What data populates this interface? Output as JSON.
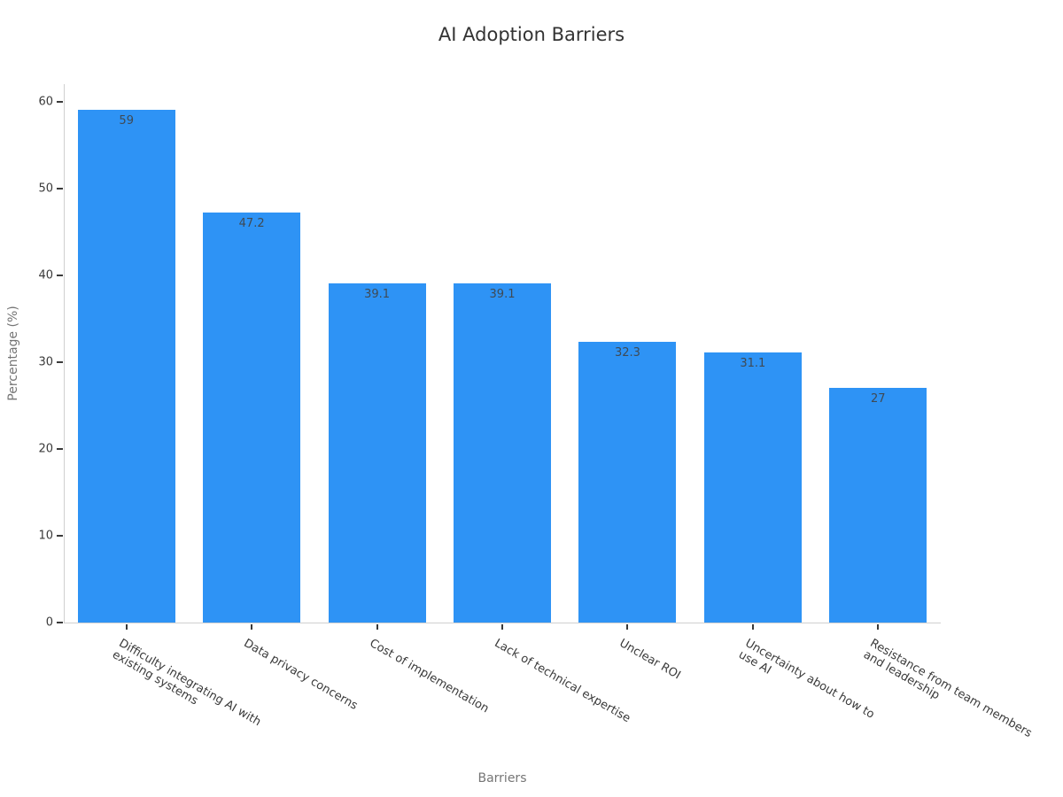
{
  "chart_data": {
    "type": "bar",
    "title": "AI Adoption Barriers",
    "xlabel": "Barriers",
    "ylabel": "Percentage (%)",
    "categories": [
      "Difficulty integrating AI with\nexisting systems",
      "Data privacy concerns",
      "Cost of implementation",
      "Lack of technical expertise",
      "Unclear ROI",
      "Uncertainty about how to\nuse AI",
      "Resistance from team members\nand leadership"
    ],
    "values": [
      59,
      47.2,
      39.1,
      39.1,
      32.3,
      31.1,
      27
    ],
    "value_labels": [
      "59",
      "47.2",
      "39.1",
      "39.1",
      "32.3",
      "31.1",
      "27"
    ],
    "yticks": [
      0,
      10,
      20,
      30,
      40,
      50,
      60
    ],
    "ylim": [
      0,
      62
    ],
    "grid": false,
    "legend": null,
    "tick_angle_deg": 30,
    "colors": {
      "bar": "#2E93F5",
      "value_label": "#3F4A54",
      "tick_label": "#3A3A3A",
      "tick_mark": "#3A3A3A",
      "axis_line": "#D0D0D0",
      "axis_title": "#757575",
      "title": "#333333",
      "background": "#FFFFFF"
    }
  }
}
